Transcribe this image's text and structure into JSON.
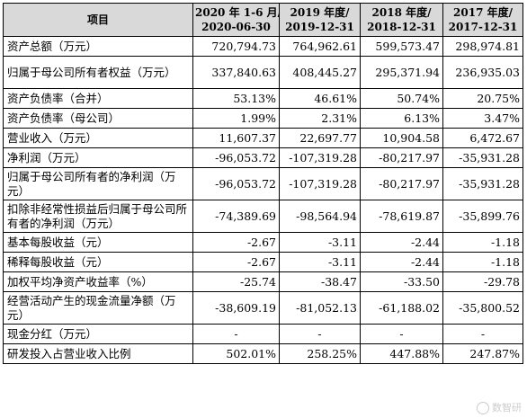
{
  "header": {
    "item": "项目",
    "periods": [
      {
        "line1": "2020 年 1-6 月/",
        "line2": "2020-06-30"
      },
      {
        "line1": "2019 年度/",
        "line2": "2019-12-31"
      },
      {
        "line1": "2018 年度/",
        "line2": "2018-12-31"
      },
      {
        "line1": "2017 年度/",
        "line2": "2017-12-31"
      }
    ]
  },
  "rows": [
    {
      "label": "资产总额（万元）",
      "values": [
        "720,794.73",
        "764,962.61",
        "599,573.47",
        "298,974.81"
      ]
    },
    {
      "label": "归属于母公司所有者权益（万元）",
      "values": [
        "337,840.63",
        "408,445.27",
        "295,371.94",
        "236,935.03"
      ]
    },
    {
      "label": "资产负债率（合并）",
      "values": [
        "53.13%",
        "46.61%",
        "50.74%",
        "20.75%"
      ]
    },
    {
      "label": "资产负债率（母公司）",
      "values": [
        "1.99%",
        "2.31%",
        "6.13%",
        "3.47%"
      ]
    },
    {
      "label": "营业收入（万元）",
      "values": [
        "11,607.37",
        "22,697.77",
        "10,904.58",
        "6,472.67"
      ]
    },
    {
      "label": "净利润（万元）",
      "values": [
        "-96,053.72",
        "-107,319.28",
        "-80,217.97",
        "-35,931.28"
      ]
    },
    {
      "label": "归属于母公司所有者的净利润（万元）",
      "values": [
        "-96,053.72",
        "-107,319.28",
        "-80,217.97",
        "-35,931.28"
      ]
    },
    {
      "label": "扣除非经常性损益后归属于母公司所有者的净利润（万元）",
      "values": [
        "-74,389.69",
        "-98,564.94",
        "-78,619.87",
        "-35,899.76"
      ]
    },
    {
      "label": "基本每股收益（元）",
      "values": [
        "-2.67",
        "-3.11",
        "-2.44",
        "-1.18"
      ]
    },
    {
      "label": "稀释每股收益（元）",
      "values": [
        "-2.67",
        "-3.11",
        "-2.44",
        "-1.18"
      ]
    },
    {
      "label": "加权平均净资产收益率（%）",
      "values": [
        "-25.74",
        "-38.47",
        "-33.50",
        "-29.78"
      ]
    },
    {
      "label": "经营活动产生的现金流量净额（万元）",
      "values": [
        "-38,609.19",
        "-81,052.13",
        "-61,188.02",
        "-35,800.52"
      ]
    },
    {
      "label": "现金分红（万元）",
      "values": [
        "-",
        "-",
        "-",
        "-"
      ]
    },
    {
      "label": "研发投入占营业收入比例",
      "values": [
        "502.01%",
        "258.25%",
        "447.88%",
        "247.87%"
      ]
    }
  ],
  "watermark": {
    "text": "数智研",
    "icon": "wechat-icon"
  }
}
